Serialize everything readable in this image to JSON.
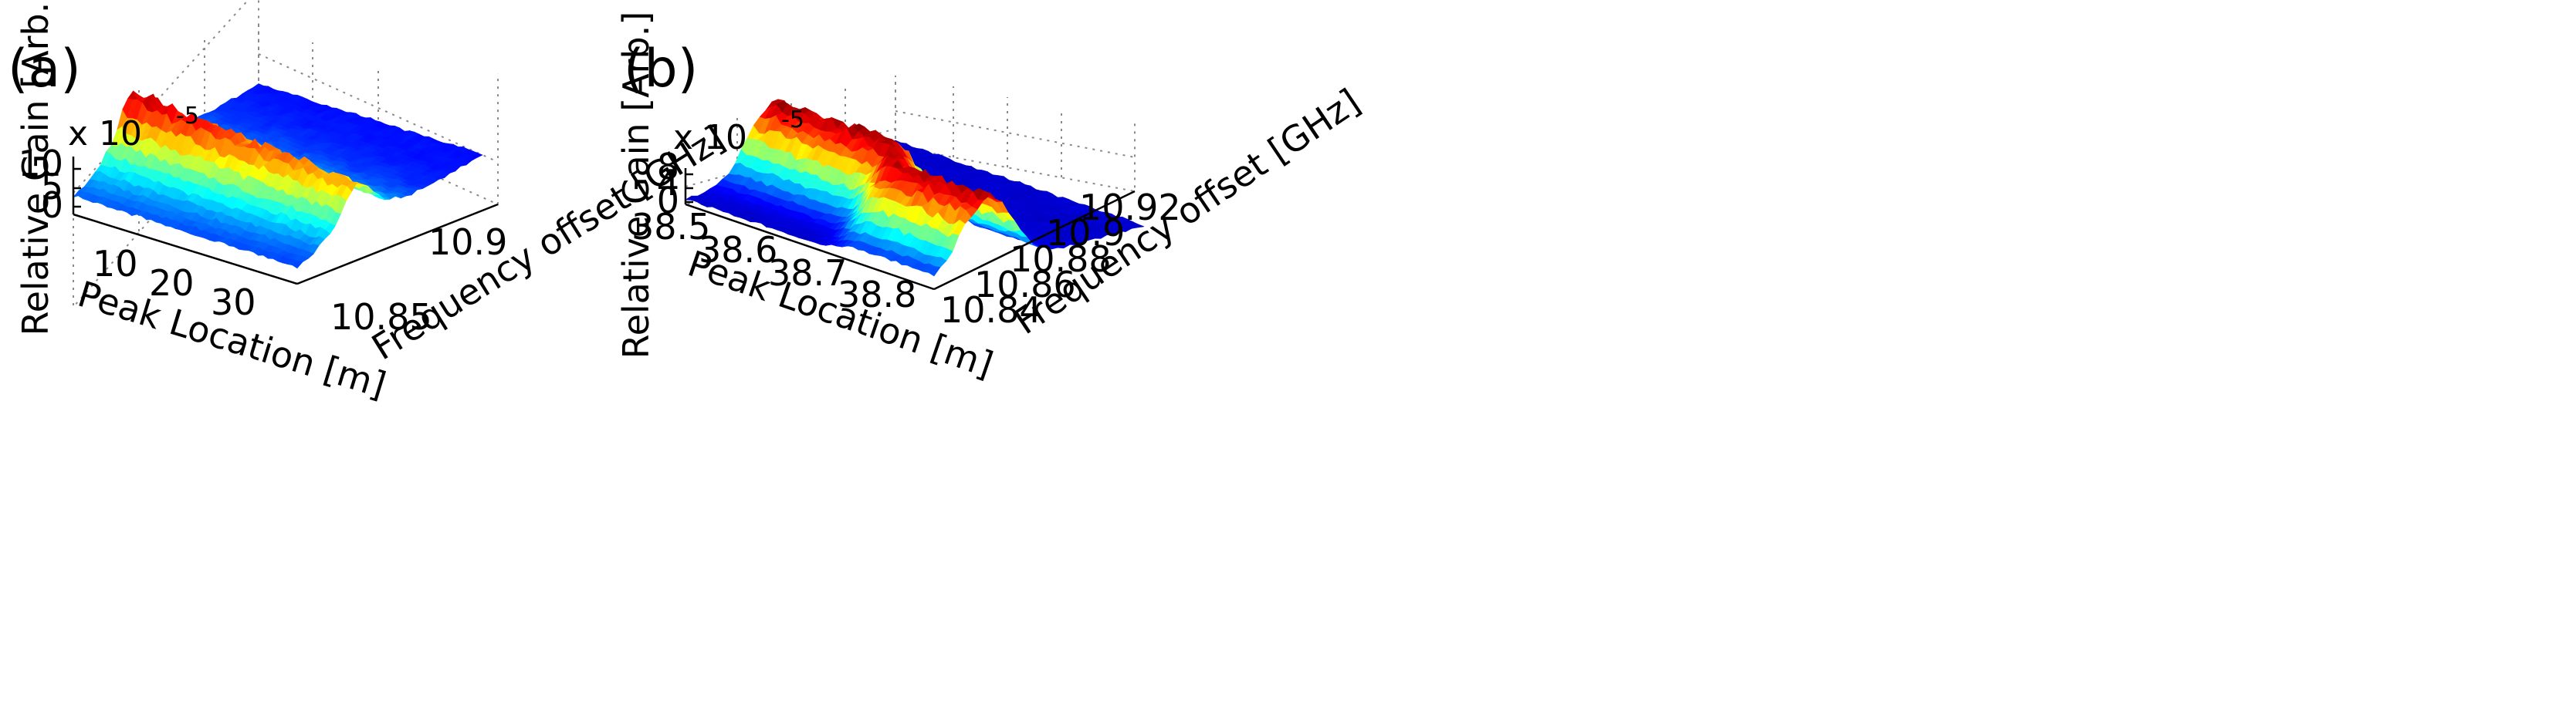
{
  "figure": {
    "panels": [
      {
        "label": "(a)",
        "exponent_prefix": "x 10",
        "exponent_power": "-5",
        "zlabel": "Relative Gain [Arb.]",
        "xlabel": "Peak Location [m]",
        "ylabel": "Frequency offset [GHz]",
        "x_ticks": [
          "10",
          "20",
          "30"
        ],
        "y_ticks": [
          "10.85",
          "10.9"
        ],
        "z_ticks": [
          "0",
          "5",
          "10"
        ]
      },
      {
        "label": "(b)",
        "exponent_prefix": "x 10",
        "exponent_power": "-5",
        "zlabel": "Relative Gain [Arb.]",
        "xlabel": "Peak Location [m]",
        "ylabel": "Frequency offset [GHz]",
        "x_ticks": [
          "38.5",
          "38.6",
          "38.7",
          "38.8"
        ],
        "y_ticks": [
          "10.84",
          "10.86",
          "10.88",
          "10.9",
          "10.92"
        ],
        "z_ticks": [
          "0",
          "4",
          "8"
        ]
      }
    ]
  },
  "colors": {
    "colormap": "jet",
    "jet_stops": [
      "#00008f",
      "#0000ff",
      "#0080ff",
      "#00ffff",
      "#80ff80",
      "#ffff00",
      "#ff8000",
      "#ff0000",
      "#800000"
    ]
  },
  "chart_data": [
    {
      "type": "surface",
      "title": "(a)",
      "xlabel": "Peak Location [m]",
      "ylabel": "Frequency offset [GHz]",
      "zlabel": "Relative Gain [Arb.]",
      "z_scale": "x 10^-5",
      "xlim": [
        0,
        40
      ],
      "ylim": [
        10.82,
        10.95
      ],
      "zlim": [
        0,
        14
      ],
      "x_ticks": [
        10,
        20,
        30
      ],
      "y_ticks": [
        10.85,
        10.9
      ],
      "z_ticks": [
        0,
        5,
        10
      ],
      "peak": {
        "center_frequency_ghz": 10.862,
        "linewidth_ghz": 0.016,
        "gain_at_x_start": 12.5,
        "gain_at_x_end": 9.0
      },
      "background_gain": 1.5,
      "colormap": "jet"
    },
    {
      "type": "surface",
      "title": "(b)",
      "xlabel": "Peak Location [m]",
      "ylabel": "Frequency offset [GHz]",
      "zlabel": "Relative Gain [Arb.]",
      "z_scale": "x 10^-5",
      "xlim": [
        38.45,
        38.9
      ],
      "ylim": [
        10.83,
        10.93
      ],
      "zlim": [
        0,
        9
      ],
      "x_ticks": [
        38.5,
        38.6,
        38.7,
        38.8
      ],
      "y_ticks": [
        10.84,
        10.86,
        10.88,
        10.9,
        10.92
      ],
      "z_ticks": [
        0,
        4,
        8
      ],
      "segments": [
        {
          "x_range": [
            38.45,
            38.7
          ],
          "center_frequency_ghz": 10.872,
          "peak_gain": 8.2
        },
        {
          "x_range": [
            38.7,
            38.9
          ],
          "center_frequency_ghz": 10.855,
          "peak_gain": 8.0
        }
      ],
      "linewidth_ghz": 0.012,
      "background_gain": 0.6,
      "colormap": "jet"
    }
  ]
}
